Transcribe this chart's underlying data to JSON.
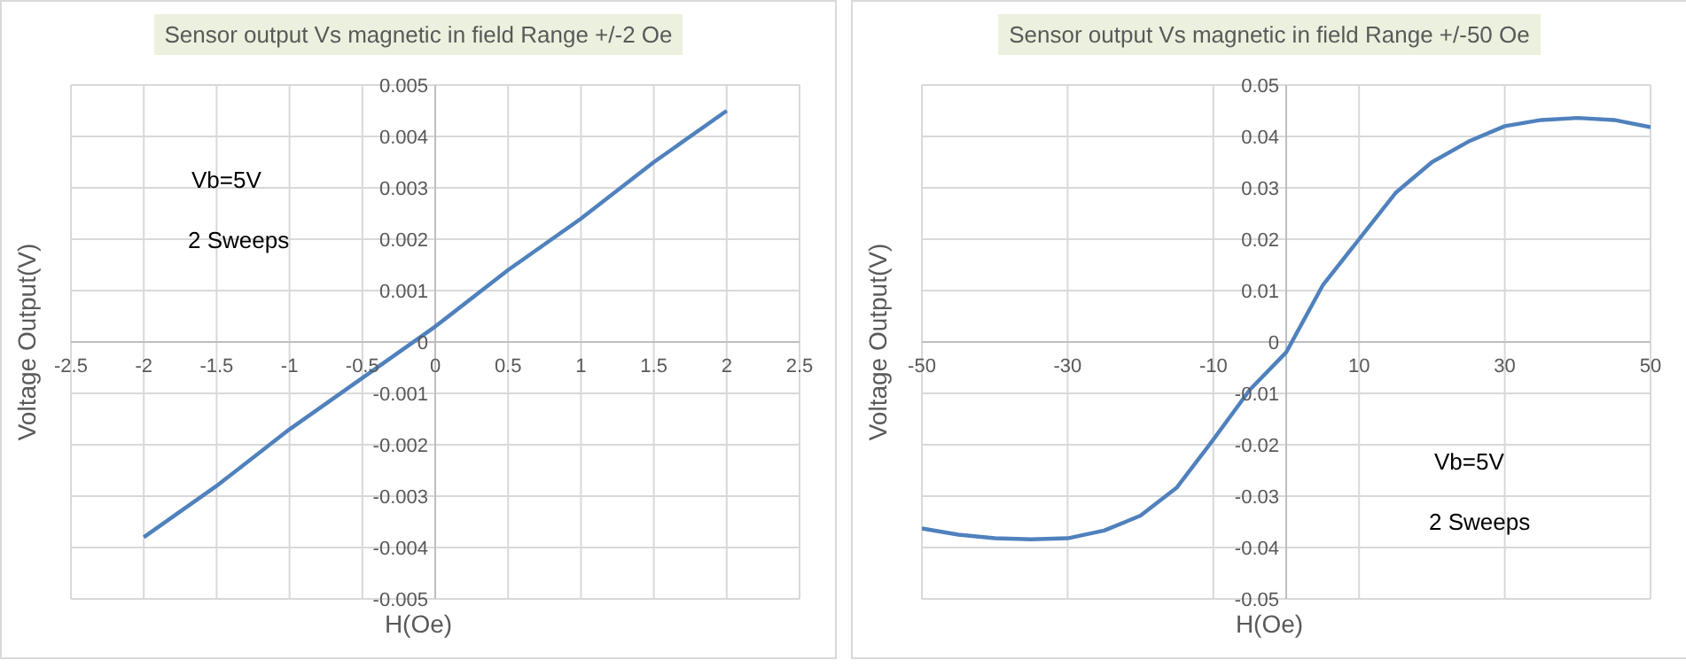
{
  "chart_data": [
    {
      "type": "line",
      "title": "Sensor output  Vs magnetic in field Range +/-2 Oe",
      "xlabel": "H(Oe)",
      "ylabel": "Voltage Output(V)",
      "annotations": [
        "Vb=5V",
        "2 Sweeps"
      ],
      "x": [
        -2,
        -1.5,
        -1,
        -0.5,
        0,
        0.5,
        1,
        1.5,
        2
      ],
      "series": [
        {
          "color": "#4f81bd",
          "values": [
            -0.0038,
            -0.0028,
            -0.0017,
            -0.0007,
            0.0003,
            0.0014,
            0.0024,
            0.0035,
            0.0045
          ]
        }
      ],
      "xlim": [
        -2.5,
        2.5
      ],
      "xticks": [
        -2.5,
        -2,
        -1.5,
        -1,
        -0.5,
        0,
        0.5,
        1,
        1.5,
        2,
        2.5
      ],
      "ylim": [
        -0.005,
        0.005
      ],
      "yticks": [
        -0.005,
        -0.004,
        -0.003,
        -0.002,
        -0.001,
        0,
        0.001,
        0.002,
        0.003,
        0.004,
        0.005
      ],
      "grid": true,
      "legend": false,
      "marker": "none",
      "line_style": "solid"
    },
    {
      "type": "line",
      "title": "Sensor output  Vs magnetic in field Range +/-50 Oe",
      "xlabel": "H(Oe)",
      "ylabel": "Voltage Output(V)",
      "annotations": [
        "Vb=5V",
        "2 Sweeps"
      ],
      "x": [
        -50,
        -45,
        -40,
        -35,
        -30,
        -25,
        -20,
        -15,
        -10,
        -5,
        0,
        5,
        10,
        15,
        20,
        25,
        30,
        35,
        40,
        45,
        50
      ],
      "series": [
        {
          "color": "#4f81bd",
          "values": [
            -0.0363,
            -0.0375,
            -0.0382,
            -0.0384,
            -0.0382,
            -0.0367,
            -0.0338,
            -0.0283,
            -0.019,
            -0.0093,
            -0.002,
            0.011,
            0.02,
            0.029,
            0.035,
            0.039,
            0.042,
            0.0432,
            0.0436,
            0.0432,
            0.0418
          ]
        }
      ],
      "xlim": [
        -50,
        50
      ],
      "xticks": [
        -50,
        -30,
        -10,
        10,
        30,
        50
      ],
      "ylim": [
        -0.05,
        0.05
      ],
      "yticks": [
        -0.05,
        -0.04,
        -0.03,
        -0.02,
        -0.01,
        0,
        0.01,
        0.02,
        0.03,
        0.04,
        0.05
      ],
      "grid": true,
      "legend": false,
      "marker": "none",
      "line_style": "solid"
    }
  ]
}
